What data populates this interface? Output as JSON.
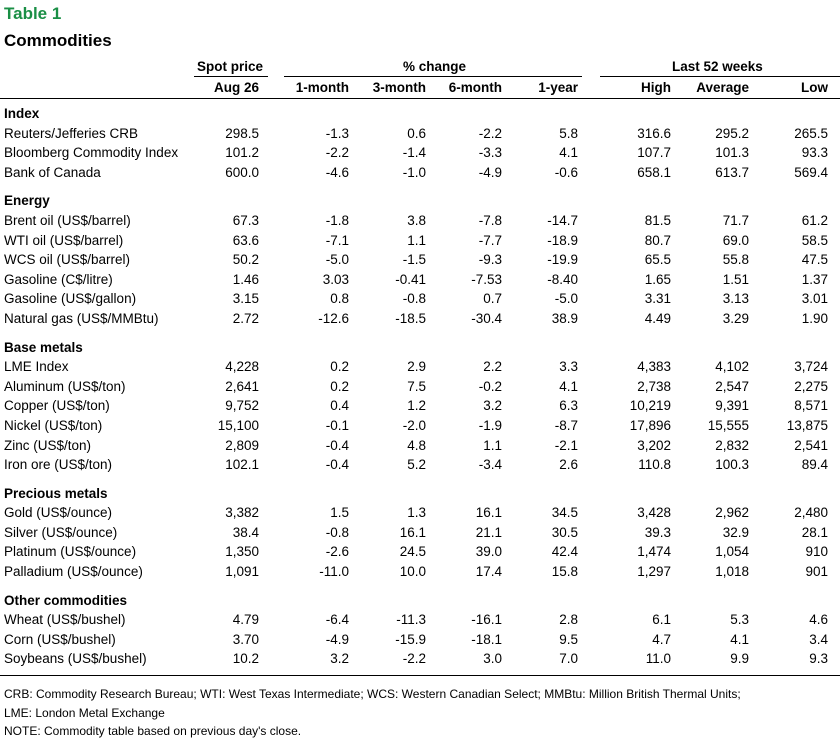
{
  "header": {
    "table_label": "Table 1",
    "title": "Commodities",
    "group_spot": "Spot price",
    "group_change": "% change",
    "group_52w": "Last 52 weeks",
    "col_date": "Aug 26",
    "col_1m": "1-month",
    "col_3m": "3-month",
    "col_6m": "6-month",
    "col_1y": "1-year",
    "col_high": "High",
    "col_avg": "Average",
    "col_low": "Low"
  },
  "sections": [
    {
      "title": "Index",
      "rows": [
        {
          "name": "Reuters/Jefferies CRB",
          "values": [
            "298.5",
            "-1.3",
            "0.6",
            "-2.2",
            "5.8",
            "316.6",
            "295.2",
            "265.5"
          ]
        },
        {
          "name": "Bloomberg Commodity Index",
          "values": [
            "101.2",
            "-2.2",
            "-1.4",
            "-3.3",
            "4.1",
            "107.7",
            "101.3",
            "93.3"
          ]
        },
        {
          "name": "Bank of Canada",
          "values": [
            "600.0",
            "-4.6",
            "-1.0",
            "-4.9",
            "-0.6",
            "658.1",
            "613.7",
            "569.4"
          ]
        }
      ]
    },
    {
      "title": "Energy",
      "rows": [
        {
          "name": "Brent oil (US$/barrel)",
          "values": [
            "67.3",
            "-1.8",
            "3.8",
            "-7.8",
            "-14.7",
            "81.5",
            "71.7",
            "61.2"
          ]
        },
        {
          "name": "WTI oil (US$/barrel)",
          "values": [
            "63.6",
            "-7.1",
            "1.1",
            "-7.7",
            "-18.9",
            "80.7",
            "69.0",
            "58.5"
          ]
        },
        {
          "name": "WCS oil (US$/barrel)",
          "values": [
            "50.2",
            "-5.0",
            "-1.5",
            "-9.3",
            "-19.9",
            "65.5",
            "55.8",
            "47.5"
          ]
        },
        {
          "name": "Gasoline (C$/litre)",
          "values": [
            "1.46",
            "3.03",
            "-0.41",
            "-7.53",
            "-8.40",
            "1.65",
            "1.51",
            "1.37"
          ]
        },
        {
          "name": "Gasoline (US$/gallon)",
          "values": [
            "3.15",
            "0.8",
            "-0.8",
            "0.7",
            "-5.0",
            "3.31",
            "3.13",
            "3.01"
          ]
        },
        {
          "name": "Natural gas (US$/MMBtu)",
          "values": [
            "2.72",
            "-12.6",
            "-18.5",
            "-30.4",
            "38.9",
            "4.49",
            "3.29",
            "1.90"
          ]
        }
      ]
    },
    {
      "title": "Base metals",
      "rows": [
        {
          "name": "LME Index",
          "values": [
            "4,228",
            "0.2",
            "2.9",
            "2.2",
            "3.3",
            "4,383",
            "4,102",
            "3,724"
          ]
        },
        {
          "name": "Aluminum (US$/ton)",
          "values": [
            "2,641",
            "0.2",
            "7.5",
            "-0.2",
            "4.1",
            "2,738",
            "2,547",
            "2,275"
          ]
        },
        {
          "name": "Copper (US$/ton)",
          "values": [
            "9,752",
            "0.4",
            "1.2",
            "3.2",
            "6.3",
            "10,219",
            "9,391",
            "8,571"
          ]
        },
        {
          "name": "Nickel (US$/ton)",
          "values": [
            "15,100",
            "-0.1",
            "-2.0",
            "-1.9",
            "-8.7",
            "17,896",
            "15,555",
            "13,875"
          ]
        },
        {
          "name": "Zinc (US$/ton)",
          "values": [
            "2,809",
            "-0.4",
            "4.8",
            "1.1",
            "-2.1",
            "3,202",
            "2,832",
            "2,541"
          ]
        },
        {
          "name": "Iron ore (US$/ton)",
          "values": [
            "102.1",
            "-0.4",
            "5.2",
            "-3.4",
            "2.6",
            "110.8",
            "100.3",
            "89.4"
          ]
        }
      ]
    },
    {
      "title": "Precious metals",
      "rows": [
        {
          "name": "Gold (US$/ounce)",
          "values": [
            "3,382",
            "1.5",
            "1.3",
            "16.1",
            "34.5",
            "3,428",
            "2,962",
            "2,480"
          ]
        },
        {
          "name": "Silver (US$/ounce)",
          "values": [
            "38.4",
            "-0.8",
            "16.1",
            "21.1",
            "30.5",
            "39.3",
            "32.9",
            "28.1"
          ]
        },
        {
          "name": "Platinum (US$/ounce)",
          "values": [
            "1,350",
            "-2.6",
            "24.5",
            "39.0",
            "42.4",
            "1,474",
            "1,054",
            "910"
          ]
        },
        {
          "name": "Palladium (US$/ounce)",
          "values": [
            "1,091",
            "-11.0",
            "10.0",
            "17.4",
            "15.8",
            "1,297",
            "1,018",
            "901"
          ]
        }
      ]
    },
    {
      "title": "Other commodities",
      "rows": [
        {
          "name": "Wheat (US$/bushel)",
          "values": [
            "4.79",
            "-6.4",
            "-11.3",
            "-16.1",
            "2.8",
            "6.1",
            "5.3",
            "4.6"
          ]
        },
        {
          "name": "Corn (US$/bushel)",
          "values": [
            "3.70",
            "-4.9",
            "-15.9",
            "-18.1",
            "9.5",
            "4.7",
            "4.1",
            "3.4"
          ]
        },
        {
          "name": "Soybeans (US$/bushel)",
          "values": [
            "10.2",
            "3.2",
            "-2.2",
            "3.0",
            "7.0",
            "11.0",
            "9.9",
            "9.3"
          ]
        }
      ]
    }
  ],
  "notes": {
    "line1": "CRB: Commodity Research Bureau; WTI: West Texas Intermediate; WCS: Western Canadian Select; MMBtu: Million British Thermal Units;",
    "line2": "LME: London Metal Exchange",
    "line3": "NOTE: Commodity table based on previous day's close."
  },
  "colors": {
    "table_label": "#1a8f45"
  }
}
